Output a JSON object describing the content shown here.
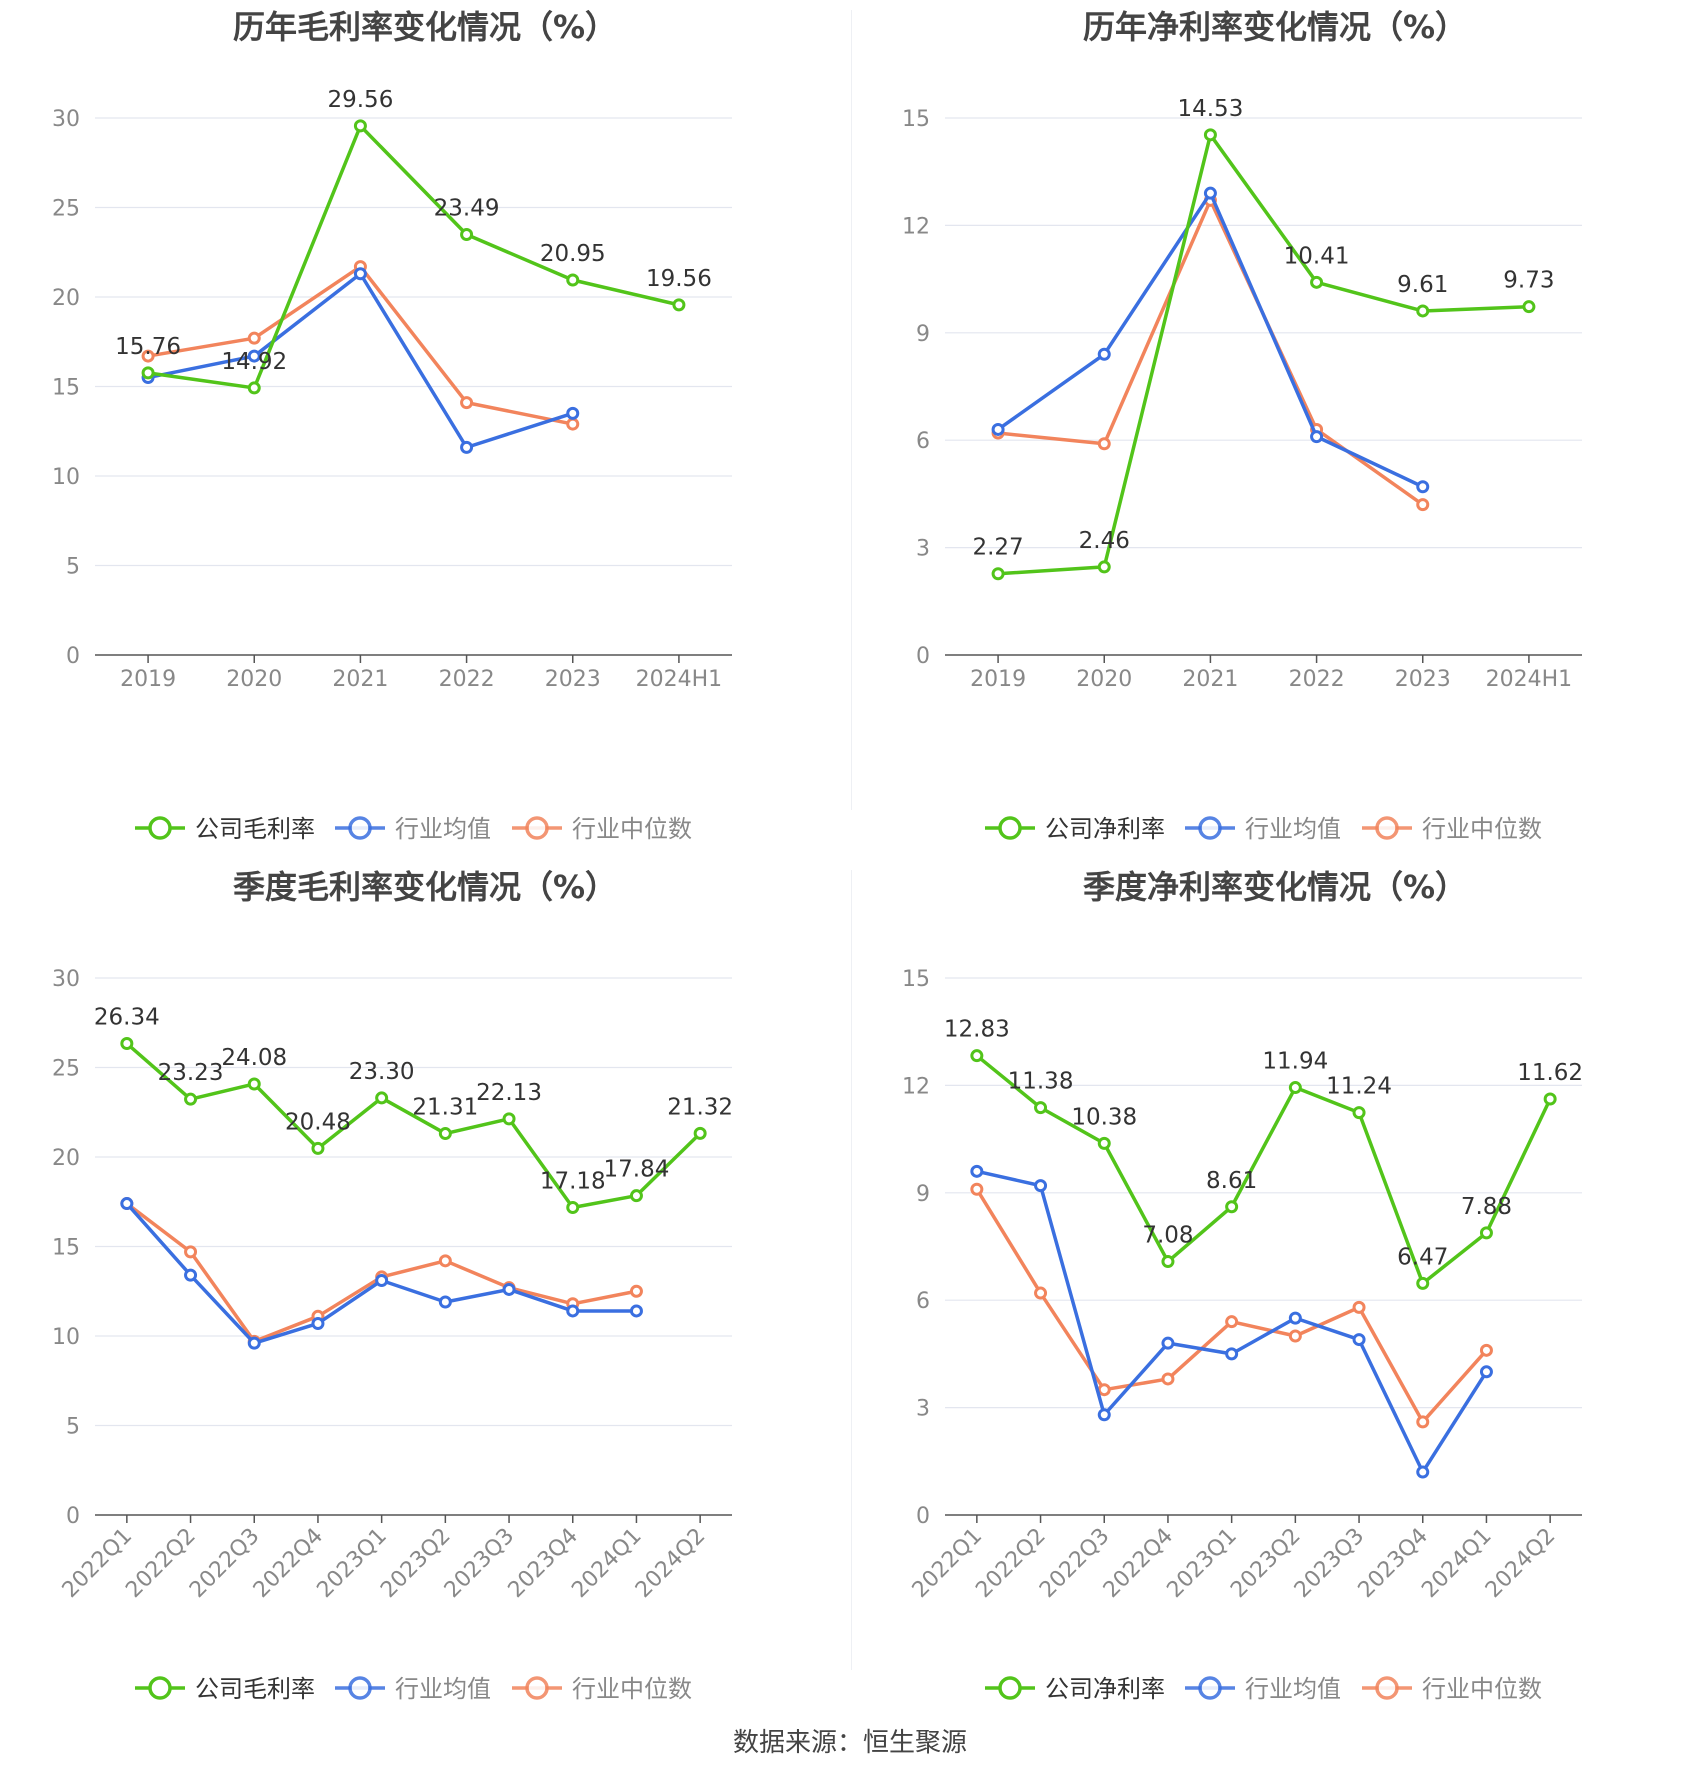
{
  "source": "数据来源：恒生聚源",
  "colors": {
    "company": "#52c41a",
    "avg": "#3a6fe0",
    "median": "#f2845c",
    "grid": "#e3e6ef",
    "axis": "#555555",
    "tick": "#888888",
    "title": "#444444",
    "label": "#333333"
  },
  "chart_data": [
    {
      "type": "line",
      "title": "历年毛利率变化情况（%）",
      "categories": [
        "2019",
        "2020",
        "2021",
        "2022",
        "2023",
        "2024H1"
      ],
      "ylim": [
        0,
        30
      ],
      "yticks": [
        0,
        5,
        10,
        15,
        20,
        25,
        30
      ],
      "grid": true,
      "legend": "bottom",
      "series": [
        {
          "name": "公司毛利率",
          "role": "company",
          "values": [
            15.76,
            14.92,
            29.56,
            23.49,
            20.95,
            19.56
          ],
          "labels": [
            "15.76",
            "14.92",
            "29.56",
            "23.49",
            "20.95",
            "19.56"
          ]
        },
        {
          "name": "行业均值",
          "role": "avg",
          "values": [
            15.5,
            16.7,
            21.3,
            11.6,
            13.5,
            null
          ]
        },
        {
          "name": "行业中位数",
          "role": "median",
          "values": [
            16.7,
            17.7,
            21.7,
            14.1,
            12.9,
            null
          ]
        }
      ]
    },
    {
      "type": "line",
      "title": "历年净利率变化情况（%）",
      "categories": [
        "2019",
        "2020",
        "2021",
        "2022",
        "2023",
        "2024H1"
      ],
      "ylim": [
        0,
        15
      ],
      "yticks": [
        0,
        3,
        6,
        9,
        12,
        15
      ],
      "grid": true,
      "legend": "bottom",
      "series": [
        {
          "name": "公司净利率",
          "role": "company",
          "values": [
            2.27,
            2.46,
            14.53,
            10.41,
            9.61,
            9.73
          ],
          "labels": [
            "2.27",
            "2.46",
            "14.53",
            "10.41",
            "9.61",
            "9.73"
          ]
        },
        {
          "name": "行业均值",
          "role": "avg",
          "values": [
            6.3,
            8.4,
            12.9,
            6.1,
            4.7,
            null
          ]
        },
        {
          "name": "行业中位数",
          "role": "median",
          "values": [
            6.2,
            5.9,
            12.7,
            6.3,
            4.2,
            null
          ]
        }
      ]
    },
    {
      "type": "line",
      "title": "季度毛利率变化情况（%）",
      "categories": [
        "2022Q1",
        "2022Q2",
        "2022Q3",
        "2022Q4",
        "2023Q1",
        "2023Q2",
        "2023Q3",
        "2023Q4",
        "2024Q1",
        "2024Q2"
      ],
      "ylim": [
        0,
        30
      ],
      "yticks": [
        0,
        5,
        10,
        15,
        20,
        25,
        30
      ],
      "grid": true,
      "legend": "bottom",
      "series": [
        {
          "name": "公司毛利率",
          "role": "company",
          "values": [
            26.34,
            23.23,
            24.08,
            20.48,
            23.3,
            21.31,
            22.13,
            17.18,
            17.84,
            21.32
          ],
          "labels": [
            "26.34",
            "23.23",
            "24.08",
            "20.48",
            "23.30",
            "21.31",
            "22.13",
            "17.18",
            "17.84",
            "21.32"
          ]
        },
        {
          "name": "行业均值",
          "role": "avg",
          "values": [
            17.4,
            13.4,
            9.6,
            10.7,
            13.1,
            11.9,
            12.6,
            11.4,
            11.4,
            null
          ]
        },
        {
          "name": "行业中位数",
          "role": "median",
          "values": [
            17.4,
            14.7,
            9.7,
            11.1,
            13.3,
            14.2,
            12.7,
            11.8,
            12.5,
            null
          ]
        }
      ]
    },
    {
      "type": "line",
      "title": "季度净利率变化情况（%）",
      "categories": [
        "2022Q1",
        "2022Q2",
        "2022Q3",
        "2022Q4",
        "2023Q1",
        "2023Q2",
        "2023Q3",
        "2023Q4",
        "2024Q1",
        "2024Q2"
      ],
      "ylim": [
        0,
        15
      ],
      "yticks": [
        0,
        3,
        6,
        9,
        12,
        15
      ],
      "grid": true,
      "legend": "bottom",
      "series": [
        {
          "name": "公司净利率",
          "role": "company",
          "values": [
            12.83,
            11.38,
            10.38,
            7.08,
            8.61,
            11.94,
            11.24,
            6.47,
            7.88,
            11.62
          ],
          "labels": [
            "12.83",
            "11.38",
            "10.38",
            "7.08",
            "8.61",
            "11.94",
            "11.24",
            "6.47",
            "7.88",
            "11.62"
          ]
        },
        {
          "name": "行业均值",
          "role": "avg",
          "values": [
            9.6,
            9.2,
            2.8,
            4.8,
            4.5,
            5.5,
            4.9,
            1.2,
            4.0,
            null
          ]
        },
        {
          "name": "行业中位数",
          "role": "median",
          "values": [
            9.1,
            6.2,
            3.5,
            3.8,
            5.4,
            5.0,
            5.8,
            2.6,
            4.6,
            null
          ]
        }
      ]
    }
  ]
}
